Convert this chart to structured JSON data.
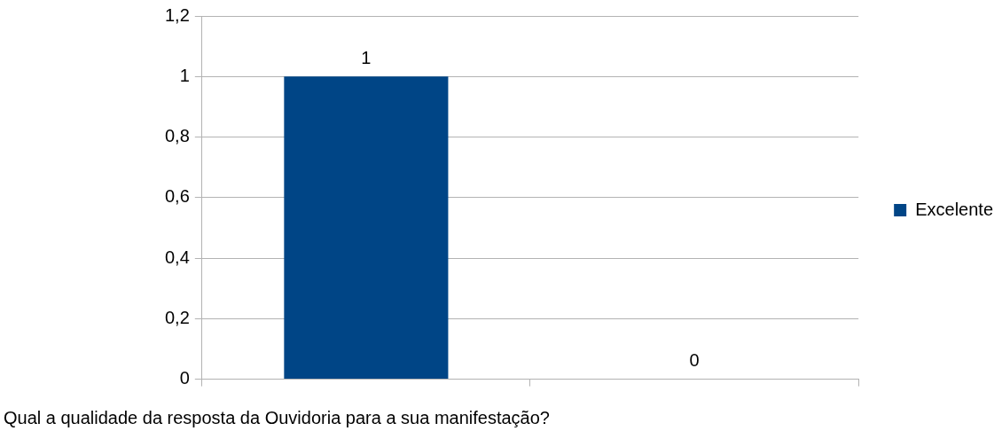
{
  "chart_data": {
    "type": "bar",
    "xlabel": "Qual a qualidade da resposta da Ouvidoria para a sua manifestação?",
    "categories": [
      null,
      null
    ],
    "series": [
      {
        "name": "Excelente",
        "color": "#004586",
        "values": [
          1,
          0
        ]
      }
    ],
    "ylim": [
      0,
      1.2
    ],
    "yticks": [
      0,
      {
        "value": 0.2,
        "label": "0,2"
      },
      {
        "value": 0.4,
        "label": "0,4"
      },
      {
        "value": 0.6,
        "label": "0,6"
      },
      {
        "value": 0.8,
        "label": "0,8"
      },
      1,
      {
        "value": 1.2,
        "label": "1,2"
      }
    ],
    "grid": "y",
    "legend": "right",
    "data_labels": true
  }
}
